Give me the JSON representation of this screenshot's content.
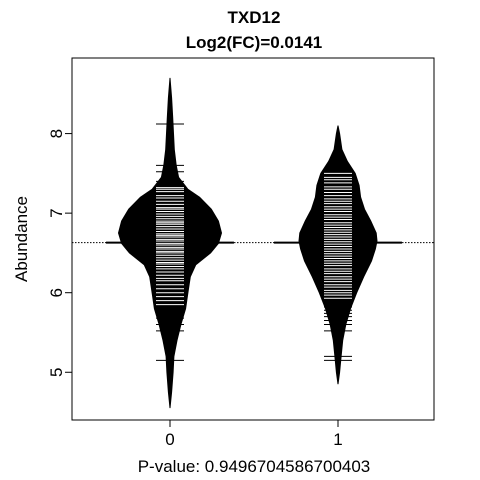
{
  "chart_data": {
    "type": "beanplot",
    "title": "TXD12",
    "subtitle": "Log2(FC)=0.0141",
    "xlabel": "P-value: 0.9496704586700403",
    "ylabel": "Abundance",
    "ylim": [
      4.4,
      8.95
    ],
    "y_ticks": [
      5,
      6,
      7,
      8
    ],
    "x_ticks": [
      "0",
      "1"
    ],
    "overall_mean": 6.63,
    "colors": {
      "fill": "#000000",
      "lines": "#ffffff",
      "background": "#ffffff"
    },
    "groups": [
      {
        "category": "0",
        "group_mean": 6.63,
        "density": [
          [
            4.55,
            0.0
          ],
          [
            4.75,
            0.02
          ],
          [
            5.0,
            0.04
          ],
          [
            5.2,
            0.05
          ],
          [
            5.4,
            0.09
          ],
          [
            5.6,
            0.14
          ],
          [
            5.8,
            0.2
          ],
          [
            6.0,
            0.23
          ],
          [
            6.2,
            0.26
          ],
          [
            6.35,
            0.33
          ],
          [
            6.5,
            0.52
          ],
          [
            6.62,
            0.62
          ],
          [
            6.75,
            0.66
          ],
          [
            6.9,
            0.62
          ],
          [
            7.05,
            0.53
          ],
          [
            7.2,
            0.38
          ],
          [
            7.3,
            0.23
          ],
          [
            7.45,
            0.11
          ],
          [
            7.6,
            0.08
          ],
          [
            7.8,
            0.055
          ],
          [
            8.0,
            0.045
          ],
          [
            8.2,
            0.035
          ],
          [
            8.45,
            0.02
          ],
          [
            8.7,
            0.0
          ]
        ],
        "points": [
          8.12,
          7.6,
          7.52,
          7.4,
          7.32,
          7.3,
          7.27,
          7.22,
          7.19,
          7.15,
          7.11,
          7.07,
          7.05,
          7.02,
          6.99,
          6.96,
          6.93,
          6.9,
          6.88,
          6.86,
          6.83,
          6.8,
          6.77,
          6.74,
          6.72,
          6.7,
          6.67,
          6.65,
          6.62,
          6.6,
          6.57,
          6.55,
          6.52,
          6.5,
          6.47,
          6.44,
          6.41,
          6.38,
          6.36,
          6.33,
          6.3,
          6.26,
          6.22,
          6.18,
          6.15,
          6.1,
          6.05,
          6.0,
          5.95,
          5.9,
          5.85,
          5.8,
          5.74,
          5.68,
          5.6,
          5.52,
          5.15
        ]
      },
      {
        "category": "1",
        "group_mean": 6.63,
        "density": [
          [
            4.85,
            0.0
          ],
          [
            5.0,
            0.02
          ],
          [
            5.2,
            0.04
          ],
          [
            5.4,
            0.06
          ],
          [
            5.6,
            0.1
          ],
          [
            5.8,
            0.16
          ],
          [
            6.0,
            0.24
          ],
          [
            6.2,
            0.33
          ],
          [
            6.4,
            0.43
          ],
          [
            6.55,
            0.48
          ],
          [
            6.65,
            0.5
          ],
          [
            6.75,
            0.49
          ],
          [
            6.9,
            0.42
          ],
          [
            7.05,
            0.34
          ],
          [
            7.2,
            0.29
          ],
          [
            7.35,
            0.27
          ],
          [
            7.5,
            0.22
          ],
          [
            7.65,
            0.12
          ],
          [
            7.8,
            0.05
          ],
          [
            8.0,
            0.02
          ],
          [
            8.1,
            0.0
          ]
        ],
        "points": [
          7.5,
          7.45,
          7.42,
          7.38,
          7.33,
          7.3,
          7.26,
          7.22,
          7.18,
          7.15,
          7.12,
          7.08,
          7.05,
          7.02,
          6.98,
          6.95,
          6.92,
          6.88,
          6.85,
          6.82,
          6.79,
          6.76,
          6.73,
          6.7,
          6.67,
          6.64,
          6.61,
          6.58,
          6.55,
          6.52,
          6.49,
          6.46,
          6.43,
          6.4,
          6.37,
          6.34,
          6.3,
          6.27,
          6.24,
          6.2,
          6.17,
          6.14,
          6.1,
          6.07,
          6.03,
          6.0,
          5.97,
          5.93,
          5.9,
          5.86,
          5.82,
          5.78,
          5.74,
          5.7,
          5.65,
          5.6,
          5.52,
          5.2,
          5.15
        ]
      }
    ]
  }
}
